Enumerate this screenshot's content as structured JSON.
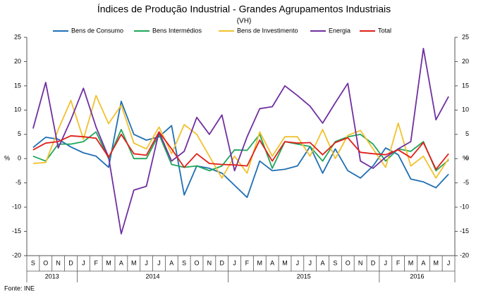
{
  "chart_data": {
    "type": "line",
    "title": "Índices de Produção Industrial - Grandes Agrupamentos Industriais",
    "subtitle": "(VH)",
    "y_label": "%",
    "source": "Fonte: INE",
    "categories": [
      "S",
      "O",
      "N",
      "D",
      "J",
      "F",
      "M",
      "A",
      "M",
      "J",
      "J",
      "A",
      "S",
      "O",
      "N",
      "D",
      "J",
      "F",
      "M",
      "A",
      "M",
      "J",
      "J",
      "A",
      "S",
      "O",
      "N",
      "D",
      "J",
      "F",
      "M",
      "A",
      "M",
      "J"
    ],
    "years": [
      "2013",
      "2014",
      "2015",
      "2016"
    ],
    "ylim": [
      -20,
      25
    ],
    "yticks": [
      -20,
      -15,
      -10,
      -5,
      0,
      5,
      10,
      15,
      20,
      25
    ],
    "grid": false,
    "legend": "top",
    "series": [
      {
        "name": "Bens de Consumo",
        "color": "#1f6fb4",
        "values": [
          2.3,
          4.4,
          4,
          2.4,
          1.2,
          0.5,
          -1.8,
          11.8,
          5,
          3.8,
          4.5,
          6.8,
          -7.5,
          -1.5,
          -2,
          -3,
          -5.5,
          -8,
          -0.5,
          -2.5,
          -2.2,
          -1.5,
          2.5,
          -3,
          2,
          -2.5,
          -4,
          -1.5,
          2.2,
          0.8,
          -4.2,
          -4.8,
          -6,
          -3.2
        ]
      },
      {
        "name": "Bens Intermédios",
        "color": "#1fa65a",
        "values": [
          0.5,
          -0.5,
          3,
          3,
          3.5,
          5.5,
          0,
          6,
          0,
          0,
          5,
          -1.2,
          -1.8,
          -1.5,
          -2.5,
          -1.5,
          1.8,
          1.7,
          5,
          -2,
          3.5,
          3,
          2.5,
          -0.5,
          3.5,
          4.5,
          5,
          3,
          -0.5,
          2,
          1.5,
          3.5,
          -2.5,
          -0.3
        ]
      },
      {
        "name": "Bens de Investimento",
        "color": "#f2c12e",
        "values": [
          -1,
          -0.8,
          6,
          12,
          4,
          13,
          7.2,
          11,
          3.2,
          2,
          6.5,
          1,
          7,
          5,
          0.5,
          -4,
          0.5,
          -3,
          5.5,
          0.5,
          4.5,
          4.5,
          0.5,
          6,
          0,
          4.8,
          5.8,
          2,
          -1.8,
          7.3,
          -1.5,
          0.5,
          -4,
          0
        ]
      },
      {
        "name": "Energia",
        "color": "#7030a0",
        "values": [
          6.2,
          15.7,
          2.2,
          8,
          14.5,
          6.5,
          0.3,
          -15.5,
          -6.5,
          -5.7,
          5.5,
          -0.5,
          1.5,
          8.5,
          5,
          9,
          -2.5,
          4.5,
          10.3,
          10.7,
          15,
          13,
          10.8,
          7.3,
          11.5,
          15.5,
          -0.5,
          -2,
          0.3,
          2,
          3.5,
          22.7,
          8,
          12.8
        ]
      },
      {
        "name": "Total",
        "color": "#e0201b",
        "values": [
          1.8,
          3.2,
          3.5,
          4.7,
          4.5,
          4.2,
          0.3,
          5,
          1,
          0.7,
          5.5,
          2,
          -1.8,
          1,
          -1,
          -1.2,
          -1.3,
          -1.5,
          3.8,
          -0.5,
          3.5,
          3.2,
          3.3,
          0.8,
          3.3,
          4.3,
          1.3,
          1,
          0.8,
          1.8,
          0.2,
          3.3,
          -2.2,
          1
        ]
      }
    ]
  }
}
